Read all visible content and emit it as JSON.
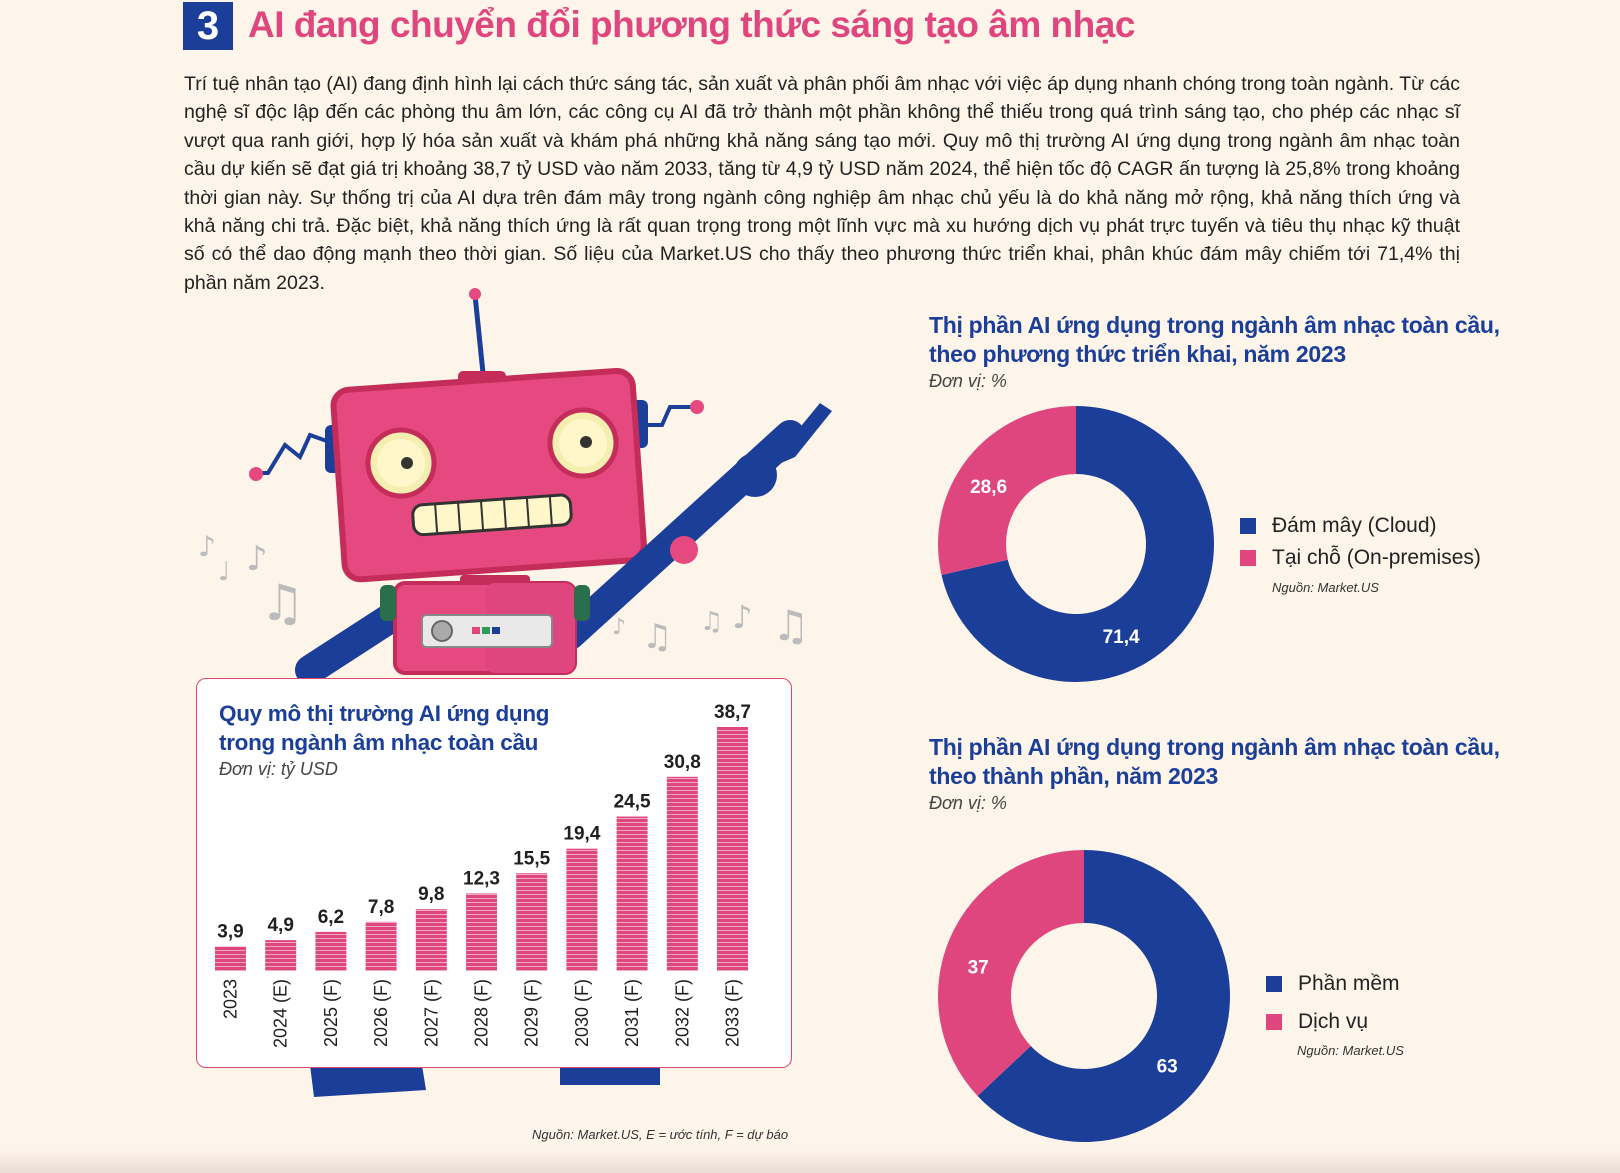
{
  "section": {
    "number": "3",
    "title": "AI đang chuyển đổi phương thức sáng tạo âm nhạc"
  },
  "intro_text": "Trí tuệ nhân tạo (AI) đang định hình lại cách thức sáng tác, sản xuất và phân phối âm nhạc với việc áp dụng nhanh chóng trong toàn ngành. Từ các nghệ sĩ độc lập đến các phòng thu âm lớn, các công cụ AI đã trở thành một phần không thể thiếu trong quá trình sáng tạo, cho phép các nhạc sĩ vượt qua ranh giới, hợp lý hóa sản xuất và khám phá những khả năng sáng tạo mới. Quy mô thị trường AI ứng dụng trong ngành âm nhạc toàn cầu dự kiến sẽ đạt giá trị khoảng 38,7 tỷ USD vào năm 2033, tăng từ 4,9 tỷ USD năm 2024, thể hiện tốc độ CAGR ấn tượng là 25,8% trong khoảng thời gian này. Sự thống trị của AI dựa trên đám mây trong ngành công nghiệp âm nhạc chủ yếu là do khả năng mở rộng, khả năng thích ứng và khả năng chi trả. Đặc biệt, khả năng thích ứng là rất quan trọng trong một lĩnh vực mà xu hướng dịch vụ phát trực tuyến và tiêu thụ nhạc kỹ thuật số có thể dao động mạnh theo thời gian. Số liệu của Market.US cho thấy theo phương thức triển khai, phân khúc đám mây chiếm tới 71,4% thị phần năm 2023.",
  "colors": {
    "blue": "#1b3f98",
    "pink": "#e0467e",
    "robot_pink": "#e5497f",
    "robot_dark": "#c42d5a"
  },
  "chart_data": [
    {
      "type": "bar",
      "title": "Quy mô thị trường AI ứng dụng trong ngành âm nhạc toàn cầu",
      "unit": "Đơn vị: tỷ USD",
      "categories": [
        "2023",
        "2024 (E)",
        "2025 (F)",
        "2026 (F)",
        "2027 (F)",
        "2028 (F)",
        "2029 (F)",
        "2030 (F)",
        "2031 (F)",
        "2032 (F)",
        "2033 (F)"
      ],
      "values": [
        3.9,
        4.9,
        6.2,
        7.8,
        9.8,
        12.3,
        15.5,
        19.4,
        24.5,
        30.8,
        38.7
      ],
      "labels": [
        "3,9",
        "4,9",
        "6,2",
        "7,8",
        "9,8",
        "12,3",
        "15,5",
        "19,4",
        "24,5",
        "30,8",
        "38,7"
      ],
      "ylim": [
        0,
        38.7
      ],
      "color": "#e0467e",
      "source": "Nguồn: Market.US, E = ước tính, F = dự báo"
    },
    {
      "type": "pie",
      "title": "Thị phần AI ứng dụng trong ngành âm nhạc toàn cầu, theo phương thức triển khai, năm 2023",
      "unit": "Đơn vị: %",
      "slices": [
        {
          "name": "Đám mây (Cloud)",
          "value": 71.4,
          "label": "71,4",
          "color": "#1b3f98"
        },
        {
          "name": "Tại chỗ (On-premises)",
          "value": 28.6,
          "label": "28,6",
          "color": "#e0467e"
        }
      ],
      "source": "Nguồn: Market.US"
    },
    {
      "type": "pie",
      "title": "Thị phần AI ứng dụng trong ngành âm nhạc toàn cầu, theo thành phần, năm 2023",
      "unit": "Đơn vị: %",
      "slices": [
        {
          "name": "Phần mềm",
          "value": 63,
          "label": "63",
          "color": "#1b3f98"
        },
        {
          "name": "Dịch vụ",
          "value": 37,
          "label": "37",
          "color": "#e0467e"
        }
      ],
      "source": "Nguồn: Market.US"
    }
  ],
  "text": {
    "bar_title_line1": "Quy mô thị trường AI ứng dụng",
    "bar_title_line2": "trong ngành âm nhạc toàn cầu",
    "pie1_title_line1": "Thị phần AI ứng dụng trong ngành âm nhạc toàn cầu,",
    "pie1_title_line2": "theo phương thức triển khai, năm 2023",
    "pie2_title_line1": "Thị phần AI ứng dụng trong ngành âm nhạc toàn cầu,",
    "pie2_title_line2": "theo thành phần, năm 2023"
  }
}
